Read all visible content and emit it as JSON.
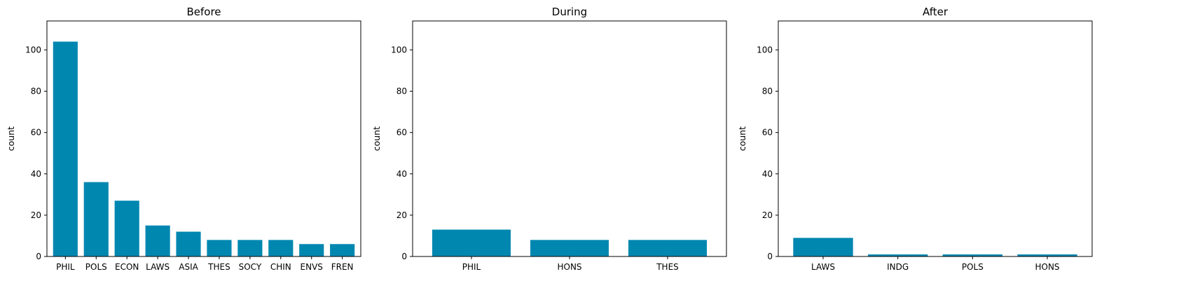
{
  "chart_data": [
    {
      "type": "bar",
      "title": "Before",
      "xlabel": "",
      "ylabel": "count",
      "ylim": [
        0,
        114
      ],
      "yticks": [
        0,
        20,
        40,
        60,
        80,
        100
      ],
      "color": "#0087b0",
      "categories": [
        "PHIL",
        "POLS",
        "ECON",
        "LAWS",
        "ASIA",
        "THES",
        "SOCY",
        "CHIN",
        "ENVS",
        "FREN"
      ],
      "values": [
        104,
        36,
        27,
        15,
        12,
        8,
        8,
        8,
        6,
        6
      ]
    },
    {
      "type": "bar",
      "title": "During",
      "xlabel": "",
      "ylabel": "count",
      "ylim": [
        0,
        114
      ],
      "yticks": [
        0,
        20,
        40,
        60,
        80,
        100
      ],
      "color": "#0087b0",
      "categories": [
        "PHIL",
        "HONS",
        "THES"
      ],
      "values": [
        13,
        8,
        8
      ]
    },
    {
      "type": "bar",
      "title": "After",
      "xlabel": "",
      "ylabel": "count",
      "ylim": [
        0,
        114
      ],
      "yticks": [
        0,
        20,
        40,
        60,
        80,
        100
      ],
      "color": "#0087b0",
      "categories": [
        "LAWS",
        "INDG",
        "POLS",
        "HONS"
      ],
      "values": [
        9,
        1,
        1,
        1
      ]
    }
  ]
}
